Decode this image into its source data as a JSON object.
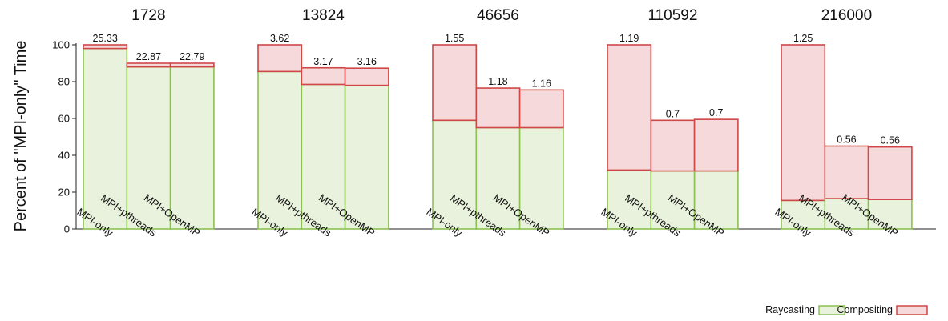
{
  "chart_data": {
    "type": "bar",
    "stacked": true,
    "ylabel": "Percent of \"MPI-only\" Time",
    "ylim": [
      0,
      100
    ],
    "yticks": [
      0,
      20,
      40,
      60,
      80,
      100
    ],
    "grid": false,
    "legend_position": "bottom-right",
    "series_names": [
      "Raycasting",
      "Compositing"
    ],
    "series_colors": {
      "Raycasting": {
        "fill": "#e9f2dc",
        "stroke": "#8dc052"
      },
      "Compositing": {
        "fill": "#f6dadb",
        "stroke": "#cf4747"
      }
    },
    "groups": [
      {
        "title": "1728",
        "bars": [
          {
            "label": "MPI-only",
            "raycasting": 98,
            "total": 100,
            "value_label": "25.33"
          },
          {
            "label": "MPI+pthreads",
            "raycasting": 88,
            "total": 90,
            "value_label": "22.87"
          },
          {
            "label": "MPI+OpenMP",
            "raycasting": 88,
            "total": 90,
            "value_label": "22.79"
          }
        ]
      },
      {
        "title": "13824",
        "bars": [
          {
            "label": "MPI-only",
            "raycasting": 85.5,
            "total": 100,
            "value_label": "3.62"
          },
          {
            "label": "MPI+pthreads",
            "raycasting": 78.5,
            "total": 87.5,
            "value_label": "3.17"
          },
          {
            "label": "MPI+OpenMP",
            "raycasting": 78,
            "total": 87.3,
            "value_label": "3.16"
          }
        ]
      },
      {
        "title": "46656",
        "bars": [
          {
            "label": "MPI-only",
            "raycasting": 59,
            "total": 100,
            "value_label": "1.55"
          },
          {
            "label": "MPI+pthreads",
            "raycasting": 55,
            "total": 76.5,
            "value_label": "1.18"
          },
          {
            "label": "MPI+OpenMP",
            "raycasting": 55,
            "total": 75.5,
            "value_label": "1.16"
          }
        ]
      },
      {
        "title": "110592",
        "bars": [
          {
            "label": "MPI-only",
            "raycasting": 32,
            "total": 100,
            "value_label": "1.19"
          },
          {
            "label": "MPI+pthreads",
            "raycasting": 31.5,
            "total": 59,
            "value_label": "0.7"
          },
          {
            "label": "MPI+OpenMP",
            "raycasting": 31.5,
            "total": 59.5,
            "value_label": "0.7"
          }
        ]
      },
      {
        "title": "216000",
        "bars": [
          {
            "label": "MPI-only",
            "raycasting": 15.5,
            "total": 100,
            "value_label": "1.25"
          },
          {
            "label": "MPI+pthreads",
            "raycasting": 16.5,
            "total": 45,
            "value_label": "0.56"
          },
          {
            "label": "MPI+OpenMP",
            "raycasting": 16,
            "total": 44.5,
            "value_label": "0.56"
          }
        ]
      }
    ]
  }
}
